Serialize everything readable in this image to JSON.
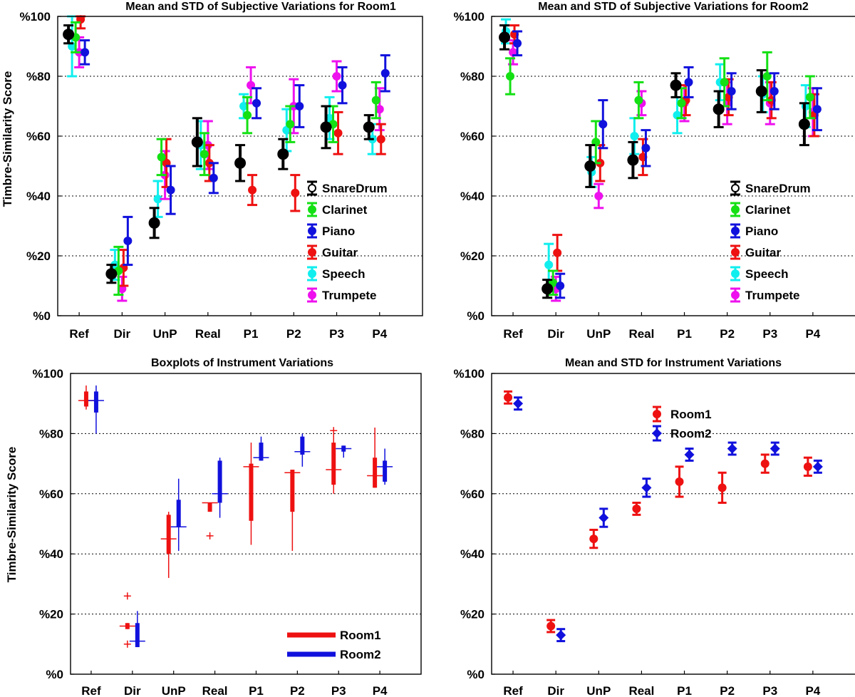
{
  "colors": {
    "SnareDrum": "#000000",
    "Clarinet": "#14e014",
    "Piano": "#1111dd",
    "Guitar": "#ee1111",
    "Speech": "#11eeee",
    "Trumpete": "#ee11ee",
    "Room1": "#ee1111",
    "Room2": "#1111dd"
  },
  "chart_data": [
    {
      "type": "errorbar",
      "title": "Mean and STD of Subjective Variations for Room1",
      "xlabel": "",
      "ylabel": "Timbre-Similarity Score",
      "categories": [
        "Ref",
        "Dir",
        "UnP",
        "Real",
        "P1",
        "P2",
        "P3",
        "P4"
      ],
      "yticks": [
        "%0",
        "%20",
        "%40",
        "%60",
        "%80",
        "%100"
      ],
      "ylim": [
        0,
        100
      ],
      "grid": "horizontal-dotted",
      "legend": "lower-right-of-center",
      "series": [
        {
          "name": "SnareDrum",
          "marker": "circle",
          "means": [
            94,
            14,
            31,
            58,
            51,
            54,
            63,
            63
          ],
          "stds": [
            3,
            3,
            5,
            8,
            6,
            5,
            7,
            4
          ]
        },
        {
          "name": "Clarinet",
          "marker": "circle",
          "means": [
            93,
            15,
            53,
            54,
            67,
            64,
            64,
            72
          ],
          "stds": [
            5,
            8,
            6,
            7,
            6,
            6,
            6,
            6
          ]
        },
        {
          "name": "Piano",
          "marker": "circle",
          "means": [
            88,
            25,
            42,
            46,
            71,
            70,
            77,
            81
          ],
          "stds": [
            4,
            8,
            8,
            5,
            5,
            7,
            6,
            6
          ]
        },
        {
          "name": "Guitar",
          "marker": "circle",
          "means": [
            99,
            16,
            51,
            51,
            42,
            41,
            61,
            59
          ],
          "stds": [
            3,
            6,
            8,
            6,
            5,
            6,
            7,
            5
          ]
        },
        {
          "name": "Speech",
          "marker": "circle",
          "means": [
            90,
            17,
            39,
            57,
            70,
            62,
            66,
            59
          ],
          "stds": [
            10,
            5,
            6,
            8,
            4,
            7,
            7,
            5
          ]
        },
        {
          "name": "Trumpete",
          "marker": "circle",
          "means": [
            88,
            9,
            47,
            57,
            77,
            70,
            80,
            69
          ],
          "stds": [
            5,
            4,
            8,
            8,
            6,
            9,
            5,
            7
          ]
        }
      ]
    },
    {
      "type": "errorbar",
      "title": "Mean and STD of Subjective Variations for Room2",
      "xlabel": "",
      "ylabel": "",
      "categories": [
        "Ref",
        "Dir",
        "UnP",
        "Real",
        "P1",
        "P2",
        "P3",
        "P4"
      ],
      "yticks": [
        "%0",
        "%20",
        "%40",
        "%60",
        "%80",
        "%100"
      ],
      "ylim": [
        0,
        100
      ],
      "grid": "horizontal-dotted",
      "legend": "lower-right-of-center",
      "series": [
        {
          "name": "SnareDrum",
          "marker": "circle",
          "means": [
            93,
            9,
            50,
            52,
            77,
            69,
            75,
            64
          ],
          "stds": [
            4,
            3,
            7,
            6,
            4,
            6,
            7,
            7
          ]
        },
        {
          "name": "Clarinet",
          "marker": "circle",
          "means": [
            80,
            11,
            58,
            72,
            71,
            78,
            80,
            73
          ],
          "stds": [
            6,
            4,
            7,
            6,
            5,
            8,
            8,
            7
          ]
        },
        {
          "name": "Piano",
          "marker": "circle",
          "means": [
            91,
            10,
            64,
            56,
            78,
            75,
            75,
            69
          ],
          "stds": [
            4,
            4,
            8,
            6,
            5,
            6,
            6,
            7
          ]
        },
        {
          "name": "Guitar",
          "marker": "circle",
          "means": [
            94,
            21,
            51,
            53,
            72,
            73,
            72,
            67
          ],
          "stds": [
            3,
            6,
            6,
            6,
            5,
            6,
            6,
            7
          ]
        },
        {
          "name": "Speech",
          "marker": "circle",
          "means": [
            95,
            17,
            48,
            60,
            67,
            78,
            74,
            70
          ],
          "stds": [
            4,
            7,
            5,
            6,
            6,
            6,
            6,
            7
          ]
        },
        {
          "name": "Trumpete",
          "marker": "circle",
          "means": [
            88,
            9,
            40,
            71,
            71,
            71,
            71,
            68
          ],
          "stds": [
            4,
            4,
            4,
            4,
            6,
            7,
            7,
            8
          ]
        }
      ]
    },
    {
      "type": "boxplot",
      "title": "Boxplots of Instrument Variations",
      "xlabel": "",
      "ylabel": "Timbre-Similarity Score",
      "categories": [
        "Ref",
        "Dir",
        "UnP",
        "Real",
        "P1",
        "P2",
        "P3",
        "P4"
      ],
      "yticks": [
        "%0",
        "%20",
        "%40",
        "%60",
        "%80",
        "%100"
      ],
      "ylim": [
        0,
        100
      ],
      "grid": "horizontal-dotted",
      "legend": "bottom-right",
      "series": [
        {
          "name": "Room1",
          "boxes": [
            {
              "min": 88,
              "q1": 89,
              "median": 91,
              "q3": 94,
              "max": 96,
              "outliers": []
            },
            {
              "min": 15,
              "q1": 15,
              "median": 16,
              "q3": 17,
              "max": 17,
              "outliers": [
                26,
                10
              ]
            },
            {
              "min": 32,
              "q1": 40,
              "median": 45,
              "q3": 53,
              "max": 54,
              "outliers": []
            },
            {
              "min": 54,
              "q1": 54,
              "median": 57,
              "q3": 57,
              "max": 57,
              "outliers": [
                46
              ]
            },
            {
              "min": 43,
              "q1": 51,
              "median": 69,
              "q3": 70,
              "max": 77,
              "outliers": []
            },
            {
              "min": 41,
              "q1": 54,
              "median": 67,
              "q3": 68,
              "max": 68,
              "outliers": []
            },
            {
              "min": 60,
              "q1": 63,
              "median": 68,
              "q3": 77,
              "max": 80,
              "outliers": [
                81
              ]
            },
            {
              "min": 62,
              "q1": 62,
              "median": 66,
              "q3": 72,
              "max": 82,
              "outliers": []
            }
          ]
        },
        {
          "name": "Room2",
          "boxes": [
            {
              "min": 80,
              "q1": 87,
              "median": 91,
              "q3": 94,
              "max": 96,
              "outliers": []
            },
            {
              "min": 9,
              "q1": 9,
              "median": 11,
              "q3": 17,
              "max": 21,
              "outliers": []
            },
            {
              "min": 41,
              "q1": 49,
              "median": 49,
              "q3": 58,
              "max": 65,
              "outliers": []
            },
            {
              "min": 52,
              "q1": 57,
              "median": 60,
              "q3": 71,
              "max": 72,
              "outliers": []
            },
            {
              "min": 71,
              "q1": 71,
              "median": 72,
              "q3": 77,
              "max": 79,
              "outliers": []
            },
            {
              "min": 69,
              "q1": 73,
              "median": 74,
              "q3": 79,
              "max": 80,
              "outliers": []
            },
            {
              "min": 72,
              "q1": 74,
              "median": 75,
              "q3": 76,
              "max": 76,
              "outliers": []
            },
            {
              "min": 63,
              "q1": 64,
              "median": 69,
              "q3": 71,
              "max": 75,
              "outliers": []
            }
          ]
        }
      ]
    },
    {
      "type": "errorbar",
      "title": "Mean and STD for Instrument Variations",
      "xlabel": "",
      "ylabel": "",
      "categories": [
        "Ref",
        "Dir",
        "UnP",
        "Real",
        "P1",
        "P2",
        "P3",
        "P4"
      ],
      "yticks": [
        "%0",
        "%20",
        "%40",
        "%60",
        "%80",
        "%100"
      ],
      "ylim": [
        0,
        100
      ],
      "grid": "horizontal-dotted",
      "legend": "top-right",
      "series": [
        {
          "name": "Room1",
          "marker": "circle",
          "means": [
            92,
            16,
            45,
            55,
            64,
            62,
            70,
            69
          ],
          "stds": [
            2,
            2,
            3,
            2,
            5,
            5,
            3,
            3
          ]
        },
        {
          "name": "Room2",
          "marker": "diamond",
          "means": [
            90,
            13,
            52,
            62,
            73,
            75,
            75,
            69
          ],
          "stds": [
            2,
            2,
            3,
            3,
            2,
            2,
            2,
            2
          ]
        }
      ]
    }
  ]
}
